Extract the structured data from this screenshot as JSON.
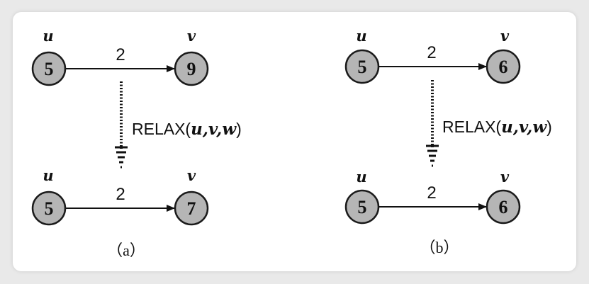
{
  "panels": [
    {
      "id": "a",
      "caption": "（a）",
      "relax_label": "RELAX(",
      "relax_args": "u,v,w",
      "relax_close": ")",
      "before": {
        "u_label": "u",
        "v_label": "v",
        "u_value": "5",
        "v_value": "9",
        "weight": "2"
      },
      "after": {
        "u_label": "u",
        "v_label": "v",
        "u_value": "5",
        "v_value": "7",
        "weight": "2"
      }
    },
    {
      "id": "b",
      "caption": "（b）",
      "relax_label": "RELAX(",
      "relax_args": "u,v,w",
      "relax_close": ")",
      "before": {
        "u_label": "u",
        "v_label": "v",
        "u_value": "5",
        "v_value": "6",
        "weight": "2"
      },
      "after": {
        "u_label": "u",
        "v_label": "v",
        "u_value": "5",
        "v_value": "6",
        "weight": "2"
      }
    }
  ],
  "colors": {
    "node_fill": "#b5b5b5",
    "stroke": "#111111",
    "card": "#ffffff",
    "background": "#e9e9e9"
  }
}
